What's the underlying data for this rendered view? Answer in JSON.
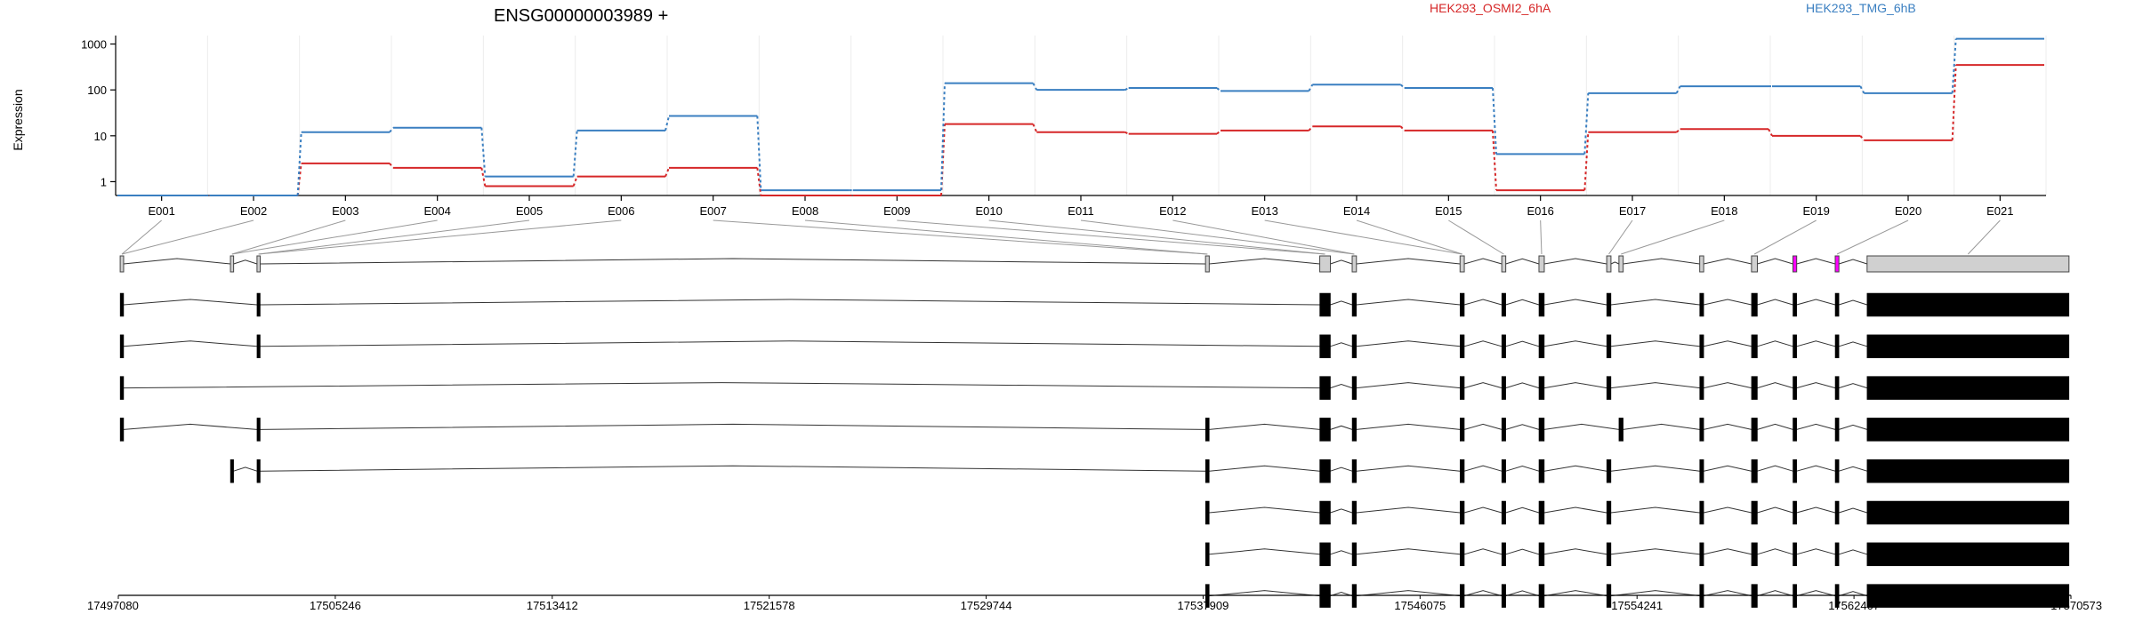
{
  "chart_data": {
    "type": "line",
    "title": "ENSG00000003989 +",
    "ylabel": "Expression",
    "yscale": "log",
    "ylim": [
      0.5,
      1400
    ],
    "y_ticks": [
      {
        "value": 1,
        "label": "1"
      },
      {
        "value": 10,
        "label": "10"
      },
      {
        "value": 100,
        "label": "100"
      },
      {
        "value": 1000,
        "label": "1000"
      }
    ],
    "categories": [
      "E001",
      "E002",
      "E003",
      "E004",
      "E005",
      "E006",
      "E007",
      "E008",
      "E009",
      "E010",
      "E011",
      "E012",
      "E013",
      "E014",
      "E015",
      "E016",
      "E017",
      "E018",
      "E019",
      "E020",
      "E021"
    ],
    "series": [
      {
        "name": "HEK293_OSMI2_6hA",
        "color": "#d62728",
        "values": [
          0.5,
          0.5,
          2.5,
          2.0,
          0.8,
          1.3,
          2.0,
          0.5,
          0.5,
          18,
          12,
          11,
          13,
          16,
          13,
          0.65,
          12,
          14,
          10,
          8,
          350
        ]
      },
      {
        "name": "HEK293_TMG_6hB",
        "color": "#3a7fc1",
        "values": [
          0.5,
          0.5,
          12,
          15,
          1.3,
          13,
          27,
          0.65,
          0.65,
          140,
          100,
          110,
          95,
          130,
          110,
          4,
          85,
          120,
          120,
          85,
          1300
        ]
      }
    ],
    "grid": "vertical-faint",
    "legend_placement": "top",
    "genomic_ticks": [
      "17497080",
      "17505246",
      "17513412",
      "17521578",
      "17529744",
      "17537909",
      "17546075",
      "17554241",
      "17562407",
      "17570573"
    ],
    "gene_model": {
      "start": 17497080,
      "end": 17570573,
      "exon_coords": [
        [
          17497150,
          17497280
        ],
        [
          17501300,
          17501420
        ],
        [
          17502300,
          17502420
        ],
        [
          17538000,
          17538140
        ],
        [
          17542300,
          17542700
        ],
        [
          17543520,
          17543680
        ],
        [
          17547580,
          17547740
        ],
        [
          17549150,
          17549300
        ],
        [
          17550550,
          17550750
        ],
        [
          17553100,
          17553260
        ],
        [
          17553560,
          17553720
        ],
        [
          17556600,
          17556750
        ],
        [
          17558550,
          17558770
        ],
        [
          17560110,
          17560250
        ],
        [
          17561700,
          17561840
        ],
        [
          17562900,
          17570500
        ]
      ],
      "exon_colors": [
        "#d0d0d0",
        "#d0d0d0",
        "#d0d0d0",
        "#d0d0d0",
        "#d0d0d0",
        "#d0d0d0",
        "#d0d0d0",
        "#d0d0d0",
        "#d0d0d0",
        "#d0d0d0",
        "#d0d0d0",
        "#d0d0d0",
        "#d0d0d0",
        "#ff00ff",
        "#ff00ff",
        "#d0d0d0"
      ],
      "exon_heights": [
        18,
        18,
        18,
        18,
        18,
        18,
        18,
        18,
        18,
        18,
        18,
        18,
        18,
        18,
        18,
        18
      ],
      "label_exon_links": [
        0,
        0,
        1,
        1,
        2,
        2,
        3,
        3,
        4,
        4,
        5,
        5,
        6,
        6,
        7,
        8,
        9,
        10,
        12,
        14,
        15
      ],
      "transcripts": [
        [
          0,
          2,
          4,
          5,
          6,
          7,
          8,
          9,
          11,
          12,
          13,
          14,
          15
        ],
        [
          0,
          2,
          4,
          5,
          6,
          7,
          8,
          9,
          11,
          12,
          13,
          14,
          15
        ],
        [
          0,
          4,
          5,
          6,
          7,
          8,
          9,
          11,
          12,
          13,
          14,
          15
        ],
        [
          0,
          2,
          3,
          4,
          5,
          6,
          7,
          8,
          10,
          11,
          12,
          13,
          14,
          15
        ],
        [
          1,
          2,
          3,
          4,
          5,
          6,
          7,
          8,
          9,
          11,
          12,
          13,
          14,
          15
        ],
        [
          3,
          4,
          5,
          6,
          7,
          8,
          9,
          11,
          12,
          13,
          14,
          15
        ],
        [
          3,
          4,
          5,
          6,
          7,
          8,
          9,
          11,
          12,
          13,
          14,
          15
        ],
        [
          3,
          4,
          5,
          6,
          7,
          8,
          9,
          11,
          12,
          13,
          14,
          15
        ]
      ]
    }
  }
}
